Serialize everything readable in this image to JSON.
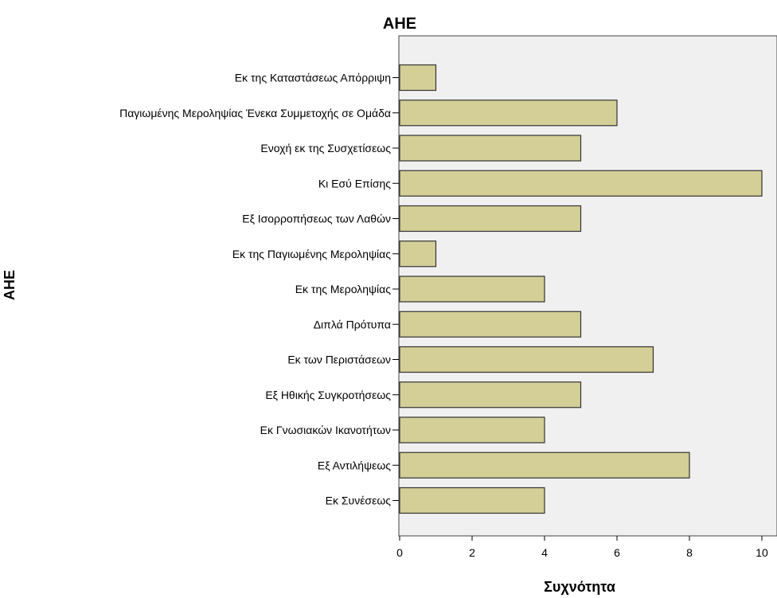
{
  "chart_data": {
    "type": "bar",
    "orientation": "horizontal",
    "title": "ΑΗΕ",
    "xlabel": "Συχνότητα",
    "ylabel": "ΑΗΕ",
    "categories": [
      "Εκ της Καταστάσεως Απόρριψη",
      "Παγιωμένης Μεροληψίας Ένεκα Συμμετοχής σε Ομάδα",
      "Ενοχή εκ της Συσχετίσεως",
      "Κι Εσύ Επίσης",
      "Εξ Ισορροπήσεως των Λαθών",
      "Εκ της Παγιωμένης Μεροληψίας",
      "Εκ της Μεροληψίας",
      "Διπλά Πρότυπα",
      "Εκ των Περιστάσεων",
      "Εξ Ηθικής Συγκροτήσεως",
      "Εκ Γνωσιακών Ικανοτήτων",
      "Εξ Αντιλήψεως",
      "Εκ Συνέσεως"
    ],
    "values": [
      1,
      6,
      5,
      10,
      5,
      1,
      4,
      5,
      7,
      5,
      4,
      8,
      4
    ],
    "xlim": [
      0,
      10
    ],
    "xticks": [
      "0",
      "2",
      "4",
      "6",
      "8",
      "10"
    ],
    "grid": false,
    "colors": {
      "bar_fill": "#d4cf97",
      "bar_stroke": "#333333",
      "plot_bg": "#f0f0f0"
    }
  }
}
